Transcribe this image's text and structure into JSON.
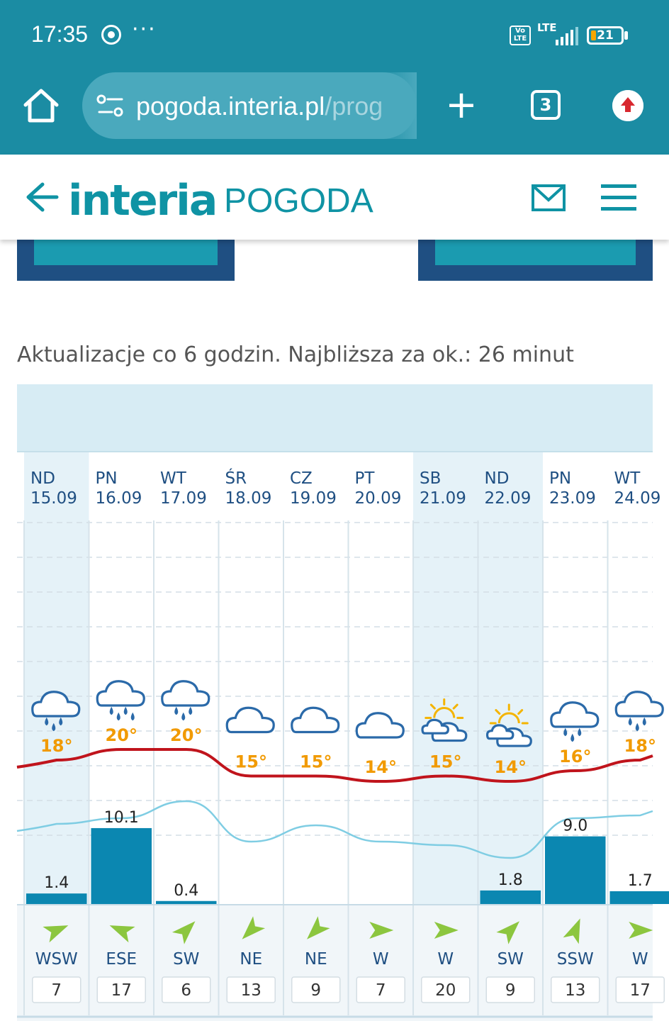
{
  "status_bar": {
    "time": "17:35",
    "dots": "···",
    "volte": "Vo LTE",
    "network": "LTE",
    "battery": "21"
  },
  "browser": {
    "url_main": "pogoda.interia.pl",
    "url_rest": "/prog",
    "tab_count": "3"
  },
  "header": {
    "logo": "interia",
    "logo_suffix": "POGODA"
  },
  "update_note": "Aktualizacje co 6 godzin. Najbliższa za ok.: 26 minut",
  "forecast": {
    "days": [
      {
        "name": "ND",
        "date": "15.09",
        "icon": "cloud-rain-icon",
        "temp": "18°",
        "precip": "1.4",
        "precip_value": 1.4,
        "wind_dir": "WSW",
        "wind_speed": "7",
        "weekend": true
      },
      {
        "name": "PN",
        "date": "16.09",
        "icon": "cloud-heavy-rain-icon",
        "temp": "20°",
        "precip": "10.1",
        "precip_value": 10.1,
        "wind_dir": "ESE",
        "wind_speed": "17",
        "weekend": false
      },
      {
        "name": "WT",
        "date": "17.09",
        "icon": "cloud-rain-icon",
        "temp": "20°",
        "precip": "0.4",
        "precip_value": 0.4,
        "wind_dir": "SW",
        "wind_speed": "6",
        "weekend": false
      },
      {
        "name": "ŚR",
        "date": "18.09",
        "icon": "cloud-icon",
        "temp": "15°",
        "precip": "",
        "precip_value": 0,
        "wind_dir": "NE",
        "wind_speed": "13",
        "weekend": false
      },
      {
        "name": "CZ",
        "date": "19.09",
        "icon": "cloud-icon",
        "temp": "15°",
        "precip": "",
        "precip_value": 0,
        "wind_dir": "NE",
        "wind_speed": "9",
        "weekend": false
      },
      {
        "name": "PT",
        "date": "20.09",
        "icon": "cloud-icon",
        "temp": "14°",
        "precip": "",
        "precip_value": 0,
        "wind_dir": "W",
        "wind_speed": "7",
        "weekend": false
      },
      {
        "name": "SB",
        "date": "21.09",
        "icon": "sun-cloud-icon",
        "temp": "15°",
        "precip": "",
        "precip_value": 0,
        "wind_dir": "W",
        "wind_speed": "20",
        "weekend": true
      },
      {
        "name": "ND",
        "date": "22.09",
        "icon": "sun-cloud-icon",
        "temp": "14°",
        "precip": "1.8",
        "precip_value": 1.8,
        "wind_dir": "SW",
        "wind_speed": "9",
        "weekend": true
      },
      {
        "name": "PN",
        "date": "23.09",
        "icon": "cloud-rain-icon",
        "temp": "16°",
        "precip": "9.0",
        "precip_value": 9.0,
        "wind_dir": "SSW",
        "wind_speed": "13",
        "weekend": false
      },
      {
        "name": "WT",
        "date": "24.09",
        "icon": "cloud-rain-icon",
        "temp": "18°",
        "precip": "1.7",
        "precip_value": 1.7,
        "wind_dir": "W",
        "wind_speed": "17",
        "weekend": false
      }
    ],
    "colors": {
      "temp_line": "#c0141c",
      "secondary_line": "#7fcde3",
      "precip_bar": "#0b87b1",
      "weekend_bg": "#e5f2f8",
      "wind_arrow": "#8cc63f"
    }
  }
}
